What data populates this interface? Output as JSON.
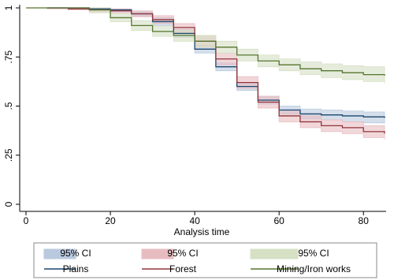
{
  "chart_data": {
    "type": "survival",
    "x_label": "Analysis time",
    "x": [
      0,
      5,
      10,
      15,
      20,
      25,
      30,
      35,
      40,
      45,
      50,
      55,
      60,
      65,
      70,
      75,
      80,
      85
    ],
    "xlim": [
      0,
      85
    ],
    "xticks": [
      0,
      20,
      40,
      60,
      80
    ],
    "ylim": [
      0,
      1
    ],
    "yticks": [
      0,
      {
        "value": 0.25,
        "label": ".25"
      },
      {
        "value": 0.5,
        "label": ".5"
      },
      {
        "value": 0.75,
        "label": ".75"
      },
      1
    ],
    "series": [
      {
        "name": "Plains",
        "color": "#1a476f",
        "ci_label": "95% CI",
        "ci_color": "#b9c9de",
        "values": [
          null,
          1,
          1,
          0.995,
          0.99,
          0.97,
          0.93,
          0.87,
          0.79,
          0.7,
          0.6,
          0.53,
          0.48,
          0.46,
          0.455,
          0.45,
          0.445,
          0.44
        ],
        "lower": [
          null,
          1,
          0.995,
          0.99,
          0.98,
          0.955,
          0.91,
          0.85,
          0.77,
          0.68,
          0.58,
          0.51,
          0.46,
          0.435,
          0.43,
          0.42,
          0.415,
          0.41
        ],
        "upper": [
          null,
          1,
          1,
          1,
          0.995,
          0.98,
          0.95,
          0.89,
          0.81,
          0.72,
          0.62,
          0.55,
          0.5,
          0.485,
          0.48,
          0.475,
          0.47,
          0.47
        ]
      },
      {
        "name": "Forest",
        "color": "#90353b",
        "ci_label": "95% CI",
        "ci_color": "#e7bcc1",
        "values": [
          null,
          1,
          0.995,
          0.99,
          0.985,
          0.97,
          0.94,
          0.9,
          0.83,
          0.74,
          0.62,
          0.52,
          0.45,
          0.42,
          0.4,
          0.39,
          0.37,
          0.36
        ],
        "lower": [
          null,
          0.995,
          0.99,
          0.98,
          0.975,
          0.955,
          0.92,
          0.875,
          0.8,
          0.71,
          0.59,
          0.49,
          0.42,
          0.39,
          0.37,
          0.36,
          0.34,
          0.33
        ],
        "upper": [
          null,
          1,
          1,
          1,
          0.995,
          0.985,
          0.96,
          0.92,
          0.86,
          0.77,
          0.65,
          0.55,
          0.48,
          0.45,
          0.43,
          0.42,
          0.4,
          0.39
        ]
      },
      {
        "name": "Mining/Iron works",
        "color": "#55752f",
        "ci_label": "95% CI",
        "ci_color": "#d6e0c4",
        "values": [
          1,
          1,
          1,
          0.99,
          0.95,
          0.91,
          0.88,
          0.86,
          0.83,
          0.8,
          0.76,
          0.73,
          0.71,
          0.69,
          0.68,
          0.67,
          0.66,
          0.655
        ],
        "lower": [
          1,
          1,
          0.995,
          0.975,
          0.93,
          0.885,
          0.855,
          0.83,
          0.8,
          0.77,
          0.73,
          0.7,
          0.68,
          0.66,
          0.645,
          0.635,
          0.625,
          0.615
        ],
        "upper": [
          1,
          1,
          1,
          1,
          0.97,
          0.935,
          0.905,
          0.885,
          0.86,
          0.83,
          0.79,
          0.76,
          0.74,
          0.725,
          0.715,
          0.705,
          0.7,
          0.695
        ]
      }
    ]
  }
}
